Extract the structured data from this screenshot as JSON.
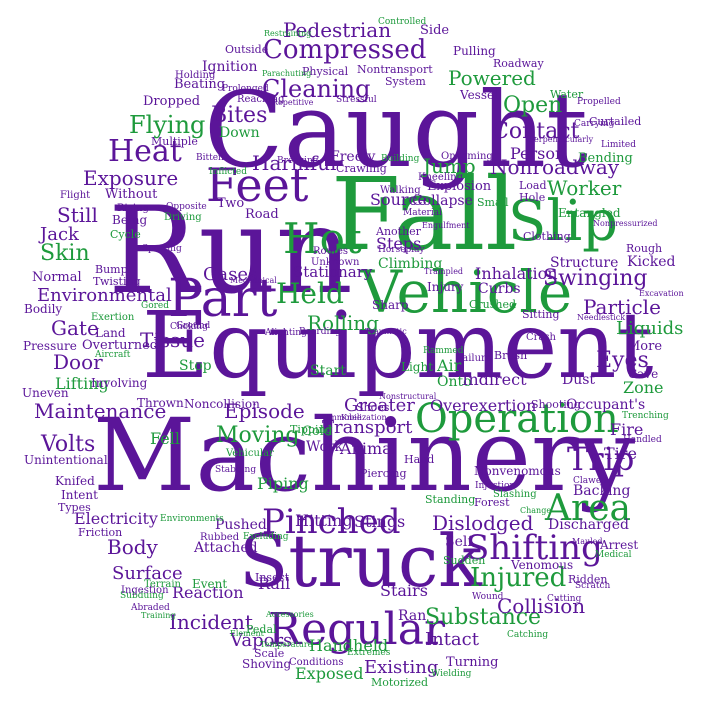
{
  "colors": {
    "purple": "#5b1599",
    "green": "#1e9a3c"
  },
  "words": [
    {
      "text": "Caught",
      "color": "purple"
    },
    {
      "text": "Run",
      "color": "purple"
    },
    {
      "text": "Fall",
      "color": "green"
    },
    {
      "text": "Equipment",
      "color": "purple"
    },
    {
      "text": "Machinery",
      "color": "purple"
    },
    {
      "text": "Struck",
      "color": "purple"
    },
    {
      "text": "Vehicle",
      "color": "green"
    },
    {
      "text": "Slip",
      "color": "green"
    },
    {
      "text": "Feet",
      "color": "purple"
    },
    {
      "text": "Hot",
      "color": "green"
    },
    {
      "text": "Part",
      "color": "purple"
    },
    {
      "text": "Regular",
      "color": "purple"
    },
    {
      "text": "Operation",
      "color": "green"
    },
    {
      "text": "Compressed",
      "color": "purple"
    },
    {
      "text": "Heat",
      "color": "purple"
    },
    {
      "text": "Pinched",
      "color": "purple"
    },
    {
      "text": "Shifting",
      "color": "purple"
    },
    {
      "text": "Area",
      "color": "green"
    },
    {
      "text": "Held",
      "color": "green"
    },
    {
      "text": "Trip",
      "color": "purple"
    },
    {
      "text": "Injured",
      "color": "green"
    },
    {
      "text": "Cleaning",
      "color": "purple"
    },
    {
      "text": "Pedestrian",
      "color": "purple"
    },
    {
      "text": "Flying",
      "color": "green"
    },
    {
      "text": "Bites",
      "color": "purple"
    },
    {
      "text": "Open",
      "color": "green"
    },
    {
      "text": "Contact",
      "color": "purple"
    },
    {
      "text": "Powered",
      "color": "green"
    },
    {
      "text": "Harmful",
      "color": "purple"
    },
    {
      "text": "Jump",
      "color": "green"
    },
    {
      "text": "Person",
      "color": "purple"
    },
    {
      "text": "Nonroadway",
      "color": "purple"
    },
    {
      "text": "Worker",
      "color": "green"
    },
    {
      "text": "Exposure",
      "color": "purple"
    },
    {
      "text": "Skin",
      "color": "green"
    },
    {
      "text": "Still",
      "color": "purple"
    },
    {
      "text": "Jack",
      "color": "purple"
    },
    {
      "text": "Gases",
      "color": "purple"
    },
    {
      "text": "Rolling",
      "color": "green"
    },
    {
      "text": "Environmental",
      "color": "purple"
    },
    {
      "text": "Swinging",
      "color": "purple"
    },
    {
      "text": "Particle",
      "color": "purple"
    },
    {
      "text": "Eyes",
      "color": "purple"
    },
    {
      "text": "Liquids",
      "color": "green"
    },
    {
      "text": "Zone",
      "color": "green"
    },
    {
      "text": "Maintenance",
      "color": "purple"
    },
    {
      "text": "Episode",
      "color": "purple"
    },
    {
      "text": "Moving",
      "color": "green"
    },
    {
      "text": "Gate",
      "color": "purple"
    },
    {
      "text": "Door",
      "color": "purple"
    },
    {
      "text": "Tissue",
      "color": "purple"
    },
    {
      "text": "Lifting",
      "color": "green"
    },
    {
      "text": "Volts",
      "color": "purple"
    },
    {
      "text": "Greater",
      "color": "purple"
    },
    {
      "text": "Transport",
      "color": "purple"
    },
    {
      "text": "Overexertion",
      "color": "purple"
    },
    {
      "text": "Fire",
      "color": "purple"
    },
    {
      "text": "Tire",
      "color": "purple"
    },
    {
      "text": "Occupant's",
      "color": "purple"
    },
    {
      "text": "Electricity",
      "color": "purple"
    },
    {
      "text": "Body",
      "color": "purple"
    },
    {
      "text": "Surface",
      "color": "purple"
    },
    {
      "text": "Dislodged",
      "color": "purple"
    },
    {
      "text": "Stings",
      "color": "purple"
    },
    {
      "text": "Incident",
      "color": "purple"
    },
    {
      "text": "Substance",
      "color": "green"
    },
    {
      "text": "Collision",
      "color": "purple"
    },
    {
      "text": "Intact",
      "color": "purple"
    },
    {
      "text": "Vapors",
      "color": "purple"
    },
    {
      "text": "Existing",
      "color": "purple"
    },
    {
      "text": "Handheld",
      "color": "green"
    },
    {
      "text": "Exposed",
      "color": "green"
    },
    {
      "text": "Stairs",
      "color": "purple"
    },
    {
      "text": "Ran",
      "color": "purple"
    },
    {
      "text": "Rail",
      "color": "purple"
    },
    {
      "text": "Reaction",
      "color": "purple"
    },
    {
      "text": "Event",
      "color": "green"
    },
    {
      "text": "Insect",
      "color": "purple"
    },
    {
      "text": "Hitting",
      "color": "purple"
    },
    {
      "text": "Pushed",
      "color": "purple"
    },
    {
      "text": "Attached",
      "color": "purple"
    },
    {
      "text": "Piping",
      "color": "green"
    },
    {
      "text": "Animal",
      "color": "purple"
    },
    {
      "text": "Work",
      "color": "purple"
    },
    {
      "text": "Cold",
      "color": "green"
    },
    {
      "text": "Fell",
      "color": "green"
    },
    {
      "text": "Start",
      "color": "green"
    },
    {
      "text": "Air",
      "color": "green"
    },
    {
      "text": "Onto",
      "color": "green"
    },
    {
      "text": "Light",
      "color": "green"
    },
    {
      "text": "Indirect",
      "color": "purple"
    },
    {
      "text": "Dust",
      "color": "purple"
    },
    {
      "text": "Steps",
      "color": "purple"
    },
    {
      "text": "Climbing",
      "color": "green"
    },
    {
      "text": "Structure",
      "color": "purple"
    },
    {
      "text": "Kicked",
      "color": "purple"
    },
    {
      "text": "Inhalation",
      "color": "purple"
    },
    {
      "text": "Curbs",
      "color": "purple"
    },
    {
      "text": "Stationary",
      "color": "purple"
    },
    {
      "text": "Source",
      "color": "purple"
    },
    {
      "text": "Collapse",
      "color": "purple"
    },
    {
      "text": "Explosion",
      "color": "purple"
    },
    {
      "text": "Freely",
      "color": "purple"
    },
    {
      "text": "Two",
      "color": "purple"
    },
    {
      "text": "Road",
      "color": "purple"
    },
    {
      "text": "Without",
      "color": "purple"
    },
    {
      "text": "Being",
      "color": "purple"
    },
    {
      "text": "Dropped",
      "color": "purple"
    },
    {
      "text": "Down",
      "color": "green"
    },
    {
      "text": "Beating",
      "color": "purple"
    },
    {
      "text": "Ignition",
      "color": "purple"
    },
    {
      "text": "Outside",
      "color": "purple"
    },
    {
      "text": "Multiple",
      "color": "purple"
    },
    {
      "text": "Normal",
      "color": "purple"
    },
    {
      "text": "Bodily",
      "color": "purple"
    },
    {
      "text": "Pressure",
      "color": "purple"
    },
    {
      "text": "Overturned",
      "color": "purple"
    },
    {
      "text": "Land",
      "color": "purple"
    },
    {
      "text": "Involving",
      "color": "purple"
    },
    {
      "text": "Uneven",
      "color": "purple"
    },
    {
      "text": "Stop",
      "color": "green"
    },
    {
      "text": "Thrown",
      "color": "purple"
    },
    {
      "text": "Noncollision",
      "color": "purple"
    },
    {
      "text": "Unintentional",
      "color": "purple"
    },
    {
      "text": "Knifed",
      "color": "purple"
    },
    {
      "text": "Intent",
      "color": "purple"
    },
    {
      "text": "Types",
      "color": "purple"
    },
    {
      "text": "Shoes",
      "color": "purple"
    },
    {
      "text": "Nonvenomous",
      "color": "purple"
    },
    {
      "text": "Self",
      "color": "purple"
    },
    {
      "text": "Venomous",
      "color": "purple"
    },
    {
      "text": "Sudden",
      "color": "green"
    },
    {
      "text": "Discharged",
      "color": "purple"
    },
    {
      "text": "Backing",
      "color": "purple"
    },
    {
      "text": "Arrest",
      "color": "purple"
    },
    {
      "text": "Cave",
      "color": "purple"
    },
    {
      "text": "More",
      "color": "purple"
    },
    {
      "text": "Shooting",
      "color": "purple"
    },
    {
      "text": "Forest",
      "color": "purple"
    },
    {
      "text": "Standing",
      "color": "green"
    },
    {
      "text": "Injury",
      "color": "purple"
    },
    {
      "text": "Sharp",
      "color": "purple"
    },
    {
      "text": "Crushed",
      "color": "green"
    },
    {
      "text": "Brush",
      "color": "purple"
    },
    {
      "text": "Crash",
      "color": "purple"
    },
    {
      "text": "Sitting",
      "color": "purple"
    },
    {
      "text": "Rough",
      "color": "purple"
    },
    {
      "text": "Entangled",
      "color": "green"
    },
    {
      "text": "Bending",
      "color": "green"
    },
    {
      "text": "Load",
      "color": "purple"
    },
    {
      "text": "Hole",
      "color": "purple"
    },
    {
      "text": "Small",
      "color": "green"
    },
    {
      "text": "Clothing",
      "color": "purple"
    },
    {
      "text": "Water",
      "color": "green"
    },
    {
      "text": "Vessel",
      "color": "purple"
    },
    {
      "text": "Roadway",
      "color": "purple"
    },
    {
      "text": "Pulling",
      "color": "purple"
    },
    {
      "text": "Side",
      "color": "purple"
    },
    {
      "text": "Nontransport",
      "color": "purple"
    },
    {
      "text": "System",
      "color": "purple"
    },
    {
      "text": "Physical",
      "color": "purple"
    },
    {
      "text": "Crawling",
      "color": "purple"
    },
    {
      "text": "Oncoming",
      "color": "purple"
    },
    {
      "text": "Walking",
      "color": "purple"
    },
    {
      "text": "Another",
      "color": "purple"
    },
    {
      "text": "Rising",
      "color": "purple"
    },
    {
      "text": "Cycle",
      "color": "green"
    },
    {
      "text": "Driving",
      "color": "green"
    },
    {
      "text": "Bump",
      "color": "purple"
    },
    {
      "text": "Flight",
      "color": "purple"
    },
    {
      "text": "Opposite",
      "color": "purple"
    },
    {
      "text": "Twisting",
      "color": "purple"
    },
    {
      "text": "Exertion",
      "color": "green"
    },
    {
      "text": "Gored",
      "color": "green"
    },
    {
      "text": "Aircraft",
      "color": "green"
    },
    {
      "text": "Choking",
      "color": "purple"
    },
    {
      "text": "Ground",
      "color": "purple"
    },
    {
      "text": "Tipping",
      "color": "green"
    },
    {
      "text": "Vehicular",
      "color": "green"
    },
    {
      "text": "Stabbing",
      "color": "purple"
    },
    {
      "text": "Piercing",
      "color": "purple"
    },
    {
      "text": "Hand",
      "color": "purple"
    },
    {
      "text": "Failure",
      "color": "purple"
    },
    {
      "text": "Rammed",
      "color": "green"
    },
    {
      "text": "Trenching",
      "color": "green"
    },
    {
      "text": "Handled",
      "color": "purple"
    },
    {
      "text": "Clawed",
      "color": "purple"
    },
    {
      "text": "Slashing",
      "color": "green"
    },
    {
      "text": "Injection",
      "color": "purple"
    },
    {
      "text": "Ridden",
      "color": "purple"
    },
    {
      "text": "Scratch",
      "color": "purple"
    },
    {
      "text": "Mauled",
      "color": "purple"
    },
    {
      "text": "Medical",
      "color": "green"
    },
    {
      "text": "Cutting",
      "color": "purple"
    },
    {
      "text": "Wound",
      "color": "purple"
    },
    {
      "text": "Catching",
      "color": "green"
    },
    {
      "text": "Turning",
      "color": "purple"
    },
    {
      "text": "Motorized",
      "color": "green"
    },
    {
      "text": "Wielding",
      "color": "green"
    },
    {
      "text": "Shoving",
      "color": "purple"
    },
    {
      "text": "Conditions",
      "color": "purple"
    },
    {
      "text": "Scale",
      "color": "purple"
    },
    {
      "text": "Pedal",
      "color": "green"
    },
    {
      "text": "Terrain",
      "color": "green"
    },
    {
      "text": "Subduing",
      "color": "green"
    },
    {
      "text": "Ingestion",
      "color": "purple"
    },
    {
      "text": "Abraded",
      "color": "purple"
    },
    {
      "text": "Training",
      "color": "green"
    },
    {
      "text": "Friction",
      "color": "purple"
    },
    {
      "text": "Rubbed",
      "color": "purple"
    },
    {
      "text": "Excluding",
      "color": "green"
    },
    {
      "text": "Environments",
      "color": "green"
    },
    {
      "text": "Accessories",
      "color": "green"
    },
    {
      "text": "Element",
      "color": "green"
    },
    {
      "text": "Extremes",
      "color": "green"
    },
    {
      "text": "Temperature",
      "color": "green"
    },
    {
      "text": "Controlled",
      "color": "green"
    },
    {
      "text": "Restraining",
      "color": "green"
    },
    {
      "text": "Perpendicularly",
      "color": "purple"
    },
    {
      "text": "Curtailed",
      "color": "purple"
    },
    {
      "text": "Carrying",
      "color": "purple"
    },
    {
      "text": "Limited",
      "color": "purple"
    },
    {
      "text": "Propelled",
      "color": "purple"
    },
    {
      "text": "Nonpressurized",
      "color": "purple"
    },
    {
      "text": "Excavation",
      "color": "purple"
    },
    {
      "text": "Needlestick",
      "color": "purple"
    },
    {
      "text": "Holding",
      "color": "purple"
    },
    {
      "text": "Parachuting",
      "color": "green"
    },
    {
      "text": "Prolonged",
      "color": "purple"
    },
    {
      "text": "Reaching",
      "color": "purple"
    },
    {
      "text": "Repetitive",
      "color": "purple"
    },
    {
      "text": "Stressful",
      "color": "purple"
    },
    {
      "text": "Breaking",
      "color": "purple"
    },
    {
      "text": "Bitten",
      "color": "purple"
    },
    {
      "text": "Inflicted",
      "color": "green"
    },
    {
      "text": "Building",
      "color": "green"
    },
    {
      "text": "Kneeling",
      "color": "purple"
    },
    {
      "text": "Horseplay",
      "color": "purple"
    },
    {
      "text": "Engulfment",
      "color": "purple"
    },
    {
      "text": "Material",
      "color": "purple"
    },
    {
      "text": "Routes",
      "color": "purple"
    },
    {
      "text": "Unknown",
      "color": "purple"
    },
    {
      "text": "Sporting",
      "color": "purple"
    },
    {
      "text": "Mechanical",
      "color": "purple"
    },
    {
      "text": "Alighting",
      "color": "purple"
    },
    {
      "text": "Boarding",
      "color": "purple"
    },
    {
      "text": "Traumatic",
      "color": "purple"
    },
    {
      "text": "Trampled",
      "color": "purple"
    },
    {
      "text": "Nonstructural",
      "color": "purple"
    },
    {
      "text": "Immobilization",
      "color": "purple"
    },
    {
      "text": "Change",
      "color": "green"
    },
    {
      "text": "Knee",
      "color": "purple"
    }
  ]
}
